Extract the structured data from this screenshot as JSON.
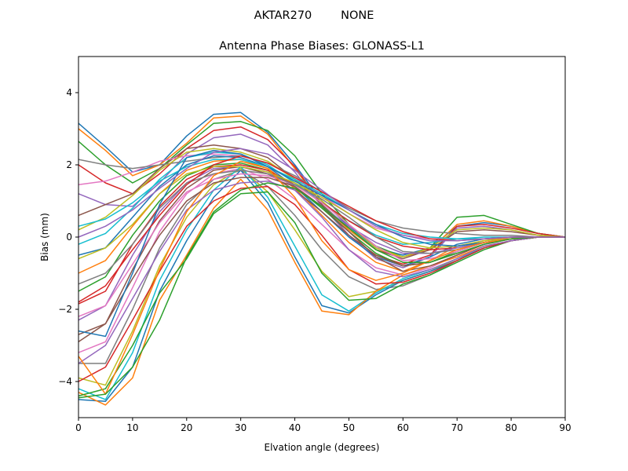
{
  "figure": {
    "suptitle": "AKTAR270        NONE"
  },
  "chart_data": {
    "type": "line",
    "title": "Antenna Phase Biases: GLONASS-L1",
    "xlabel": "Elvation angle (degrees)",
    "ylabel": "Bias (mm)",
    "xlim": [
      0,
      90
    ],
    "ylim": [
      -5,
      5
    ],
    "xticks": [
      0,
      10,
      20,
      30,
      40,
      50,
      60,
      70,
      80,
      90
    ],
    "yticks": [
      -4,
      -2,
      0,
      2,
      4
    ],
    "grid": false,
    "x": [
      0,
      5,
      10,
      15,
      20,
      25,
      30,
      35,
      40,
      45,
      50,
      55,
      60,
      65,
      70,
      75,
      80,
      85,
      90
    ],
    "colors": [
      "#1f77b4",
      "#ff7f0e",
      "#2ca02c",
      "#d62728",
      "#9467bd",
      "#8c564b",
      "#e377c2",
      "#7f7f7f",
      "#bcbd22",
      "#17becf"
    ],
    "series": [
      {
        "values": [
          3.15,
          2.5,
          1.8,
          2.0,
          2.8,
          3.4,
          3.45,
          2.9,
          2.0,
          1.0,
          0.3,
          -0.3,
          -0.5,
          -0.3,
          0.3,
          0.4,
          0.3,
          0.1,
          0.0
        ]
      },
      {
        "values": [
          3.0,
          2.4,
          1.7,
          2.0,
          2.6,
          3.3,
          3.35,
          2.85,
          1.9,
          0.9,
          0.2,
          -0.35,
          -0.55,
          -0.35,
          0.35,
          0.45,
          0.3,
          0.1,
          0.0
        ]
      },
      {
        "values": [
          2.65,
          2.0,
          1.5,
          1.9,
          2.55,
          3.15,
          3.2,
          2.95,
          2.25,
          1.2,
          0.35,
          -0.25,
          -0.55,
          -0.3,
          0.55,
          0.6,
          0.35,
          0.1,
          0.0
        ]
      },
      {
        "values": [
          2.0,
          1.5,
          1.2,
          1.75,
          2.45,
          2.95,
          3.05,
          2.7,
          1.95,
          0.9,
          0.05,
          -0.5,
          -0.75,
          -0.5,
          0.3,
          0.35,
          0.25,
          0.1,
          0.0
        ]
      },
      {
        "values": [
          1.2,
          0.9,
          0.85,
          1.5,
          2.3,
          2.75,
          2.85,
          2.55,
          1.8,
          0.85,
          0.05,
          -0.6,
          -0.85,
          -0.55,
          0.25,
          0.3,
          0.2,
          0.05,
          0.0
        ]
      },
      {
        "values": [
          0.6,
          0.9,
          1.2,
          1.9,
          2.45,
          2.55,
          2.45,
          2.2,
          1.6,
          0.9,
          0.25,
          -0.35,
          -0.6,
          -0.35,
          0.15,
          0.2,
          0.15,
          0.05,
          0.0
        ]
      },
      {
        "values": [
          1.45,
          1.55,
          1.8,
          2.1,
          2.25,
          2.3,
          2.25,
          2.05,
          1.65,
          1.15,
          0.65,
          0.25,
          0.05,
          -0.05,
          -0.05,
          -0.05,
          -0.05,
          0.0,
          0.0
        ]
      },
      {
        "values": [
          2.15,
          2.0,
          1.9,
          2.0,
          2.1,
          2.2,
          2.25,
          2.05,
          1.7,
          1.25,
          0.8,
          0.45,
          0.25,
          0.15,
          0.1,
          0.05,
          0.05,
          0.0,
          0.0
        ]
      },
      {
        "values": [
          0.2,
          0.55,
          1.15,
          1.85,
          2.35,
          2.45,
          2.35,
          2.1,
          1.6,
          1.0,
          0.35,
          -0.3,
          -0.55,
          -0.3,
          0.2,
          0.25,
          0.2,
          0.05,
          0.0
        ]
      },
      {
        "values": [
          -0.2,
          0.1,
          0.8,
          1.6,
          2.2,
          2.35,
          2.3,
          2.0,
          1.5,
          0.95,
          0.45,
          0.05,
          -0.2,
          -0.15,
          -0.05,
          0.0,
          0.0,
          0.0,
          0.0
        ]
      },
      {
        "values": [
          -0.5,
          -0.3,
          0.55,
          1.4,
          2.0,
          2.25,
          2.2,
          1.95,
          1.4,
          0.7,
          0.0,
          -0.55,
          -0.8,
          -0.55,
          -0.2,
          -0.05,
          0.0,
          0.0,
          0.0
        ]
      },
      {
        "values": [
          -1.0,
          -0.65,
          0.3,
          1.2,
          1.85,
          2.1,
          2.15,
          1.9,
          1.35,
          0.6,
          -0.15,
          -0.7,
          -0.95,
          -0.65,
          -0.25,
          -0.1,
          0.0,
          0.0,
          0.0
        ]
      },
      {
        "values": [
          -1.5,
          -1.1,
          0.05,
          1.0,
          1.7,
          2.0,
          2.05,
          1.85,
          1.4,
          0.8,
          0.15,
          -0.45,
          -0.8,
          -0.7,
          -0.4,
          -0.15,
          -0.05,
          0.0,
          0.0
        ]
      },
      {
        "values": [
          -1.85,
          -1.5,
          -0.2,
          0.85,
          1.6,
          1.95,
          2.0,
          1.85,
          1.45,
          0.95,
          0.45,
          0.0,
          -0.25,
          -0.35,
          -0.3,
          -0.15,
          -0.05,
          0.0,
          0.0
        ]
      },
      {
        "values": [
          -2.3,
          -1.9,
          -0.5,
          0.7,
          1.5,
          1.9,
          1.95,
          1.8,
          1.4,
          0.85,
          0.3,
          -0.15,
          -0.45,
          -0.45,
          -0.3,
          -0.15,
          -0.05,
          0.0,
          0.0
        ]
      },
      {
        "values": [
          -2.7,
          -2.4,
          -0.9,
          0.45,
          1.35,
          1.85,
          1.95,
          1.75,
          1.3,
          0.7,
          0.05,
          -0.5,
          -0.8,
          -0.7,
          -0.45,
          -0.2,
          -0.05,
          0.0,
          0.0
        ]
      },
      {
        "values": [
          -3.2,
          -2.9,
          -1.4,
          0.15,
          1.2,
          1.75,
          1.9,
          1.6,
          1.05,
          0.35,
          -0.35,
          -0.85,
          -1.05,
          -0.85,
          -0.5,
          -0.2,
          -0.05,
          0.0,
          0.0
        ]
      },
      {
        "values": [
          -3.5,
          -3.5,
          -2.0,
          -0.3,
          0.9,
          1.6,
          1.85,
          1.4,
          0.6,
          -0.35,
          -1.1,
          -1.45,
          -1.35,
          -1.05,
          -0.65,
          -0.3,
          -0.1,
          0.0,
          0.0
        ]
      },
      {
        "values": [
          -3.9,
          -4.1,
          -2.6,
          -0.8,
          0.55,
          1.45,
          1.9,
          1.25,
          0.2,
          -0.95,
          -1.65,
          -1.5,
          -1.2,
          -0.95,
          -0.6,
          -0.3,
          -0.1,
          0.0,
          0.0
        ]
      },
      {
        "values": [
          -4.2,
          -4.5,
          -3.2,
          -1.2,
          0.2,
          1.3,
          1.95,
          1.1,
          -0.25,
          -1.6,
          -2.05,
          -1.55,
          -1.15,
          -0.9,
          -0.6,
          -0.3,
          -0.1,
          0.0,
          0.0
        ]
      },
      {
        "values": [
          -4.5,
          -4.55,
          -3.6,
          -1.5,
          -0.1,
          1.1,
          1.85,
          0.95,
          -0.55,
          -1.9,
          -2.1,
          -1.6,
          -1.2,
          -0.95,
          -0.65,
          -0.3,
          -0.1,
          0.0,
          0.0
        ]
      },
      {
        "values": [
          -4.3,
          -4.65,
          -3.9,
          -1.75,
          -0.5,
          0.8,
          1.6,
          0.75,
          -0.7,
          -2.05,
          -2.15,
          -1.5,
          -1.05,
          -0.8,
          -0.55,
          -0.25,
          -0.1,
          0.0,
          0.0
        ]
      },
      {
        "values": [
          -4.4,
          -4.2,
          -3.0,
          -1.55,
          -0.6,
          0.65,
          1.2,
          1.25,
          0.4,
          -1.0,
          -1.75,
          -1.7,
          -1.3,
          -1.05,
          -0.7,
          -0.35,
          -0.1,
          0.0,
          0.0
        ]
      },
      {
        "values": [
          -4.0,
          -3.6,
          -2.3,
          -0.95,
          0.3,
          1.0,
          1.35,
          1.4,
          0.9,
          0.05,
          -0.9,
          -1.3,
          -1.25,
          -1.0,
          -0.65,
          -0.3,
          -0.1,
          0.0,
          0.0
        ]
      },
      {
        "values": [
          -3.5,
          -3.0,
          -1.7,
          -0.4,
          0.75,
          1.3,
          1.5,
          1.55,
          1.3,
          0.55,
          -0.35,
          -0.95,
          -1.1,
          -0.9,
          -0.6,
          -0.25,
          -0.1,
          0.0,
          0.0
        ]
      },
      {
        "values": [
          -2.9,
          -2.4,
          -1.15,
          0.05,
          1.0,
          1.5,
          1.65,
          1.65,
          1.4,
          0.85,
          0.15,
          -0.55,
          -0.95,
          -0.8,
          -0.5,
          -0.2,
          -0.05,
          0.0,
          0.0
        ]
      },
      {
        "values": [
          -2.2,
          -1.9,
          -0.75,
          0.4,
          1.25,
          1.6,
          1.75,
          1.7,
          1.45,
          0.95,
          0.35,
          -0.25,
          -0.65,
          -0.6,
          -0.4,
          -0.15,
          -0.05,
          0.0,
          0.0
        ]
      },
      {
        "values": [
          -1.3,
          -1.0,
          -0.2,
          0.8,
          1.5,
          1.75,
          1.85,
          1.75,
          1.45,
          1.05,
          0.55,
          0.0,
          -0.4,
          -0.45,
          -0.35,
          -0.15,
          -0.05,
          0.0,
          0.0
        ]
      },
      {
        "values": [
          -0.6,
          -0.3,
          0.35,
          1.2,
          1.75,
          1.95,
          1.95,
          1.8,
          1.5,
          1.1,
          0.65,
          0.2,
          -0.15,
          -0.3,
          -0.25,
          -0.1,
          -0.05,
          0.0,
          0.0
        ]
      },
      {
        "values": [
          0.3,
          0.5,
          0.95,
          1.55,
          1.95,
          2.15,
          2.15,
          1.95,
          1.6,
          1.2,
          0.75,
          0.35,
          0.1,
          0.0,
          -0.05,
          -0.05,
          0.0,
          0.0,
          0.0
        ]
      },
      {
        "values": [
          -2.6,
          -2.75,
          -1.0,
          0.9,
          2.2,
          2.4,
          2.3,
          1.95,
          1.55,
          1.15,
          0.75,
          0.35,
          0.0,
          -0.2,
          -0.25,
          -0.15,
          -0.05,
          0.0,
          0.0
        ]
      },
      {
        "values": [
          -3.3,
          -4.35,
          -2.7,
          -0.9,
          0.7,
          1.7,
          2.1,
          1.9,
          1.1,
          -0.1,
          -0.9,
          -1.2,
          -1.0,
          -0.65,
          -0.35,
          -0.15,
          -0.05,
          0.0,
          0.0
        ]
      },
      {
        "values": [
          -4.45,
          -4.35,
          -3.6,
          -2.3,
          -0.55,
          0.7,
          1.3,
          1.5,
          1.35,
          0.85,
          0.25,
          -0.35,
          -0.7,
          -0.7,
          -0.45,
          -0.2,
          -0.05,
          0.0,
          0.0
        ]
      },
      {
        "values": [
          -1.8,
          -1.35,
          -0.35,
          0.6,
          1.45,
          2.0,
          2.25,
          2.05,
          1.65,
          1.25,
          0.85,
          0.45,
          0.15,
          -0.05,
          -0.1,
          -0.05,
          0.0,
          0.0,
          0.0
        ]
      },
      {
        "values": [
          0.0,
          0.3,
          0.75,
          1.35,
          1.9,
          2.35,
          2.45,
          2.3,
          1.85,
          1.3,
          0.75,
          0.3,
          0.05,
          -0.1,
          -0.1,
          -0.05,
          0.0,
          0.0,
          0.0
        ]
      }
    ]
  }
}
